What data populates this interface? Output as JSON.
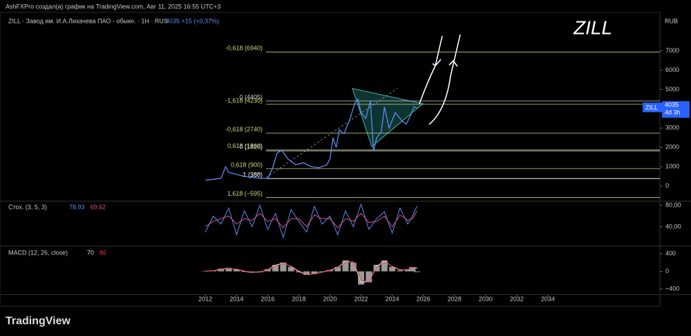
{
  "header": {
    "author_line": "AshFXPro создал(а) график на TradingView.com, Авг 11, 2025 16:55 UTC+3",
    "symbol_line": "ZILL · Завод им. И.А.Лихачева ПАО - обыкн. · 1H · RUS",
    "price_change": "4035 +15 (+0,37%)",
    "big_ticker": "ZILL",
    "currency": "RUB",
    "logo": "TradingView"
  },
  "price_label": {
    "symbol": "ZILL",
    "value": 4035,
    "countdown": "4d 3h"
  },
  "chart_data": [
    {
      "type": "line",
      "color": "#5b8ff0",
      "x": [
        2012.0,
        2012.5,
        2013.0,
        2013.3,
        2013.5,
        2014.0,
        2014.5,
        2015.0,
        2015.5,
        2016.0,
        2016.3,
        2016.6,
        2016.9,
        2017.3,
        2017.8,
        2018.3,
        2018.8,
        2019.3,
        2019.8,
        2020.0,
        2020.2,
        2020.4,
        2020.6,
        2020.9,
        2021.3,
        2021.6,
        2021.8,
        2022.0,
        2022.3,
        2022.6,
        2022.8,
        2023.0,
        2023.3,
        2023.5,
        2023.8,
        2024.2,
        2024.6,
        2024.9,
        2025.2,
        2025.4,
        2025.6
      ],
      "values": [
        300,
        350,
        400,
        1000,
        700,
        600,
        500,
        450,
        400,
        380,
        900,
        1700,
        1850,
        1400,
        1100,
        1200,
        1000,
        950,
        1100,
        1400,
        2500,
        2000,
        2900,
        2700,
        3500,
        4300,
        4500,
        3800,
        3500,
        4400,
        1800,
        2500,
        2800,
        4100,
        3000,
        3800,
        3400,
        3200,
        3700,
        4100,
        4035
      ],
      "xlim": [
        1998.8,
        2041.2
      ],
      "xticks": [
        2012,
        2014,
        2016,
        2018,
        2020,
        2022,
        2024,
        2026,
        2028,
        2030,
        2032,
        2034
      ],
      "ylim": [
        -750,
        8200
      ],
      "yticks": [
        0,
        1000,
        2000,
        3000,
        4000,
        5000,
        6000,
        7000
      ],
      "levels": [
        {
          "label": "-0,618 (6940)",
          "value": 6940,
          "color": "#c9dc7c"
        },
        {
          "label": "0 (4405)",
          "value": 4405,
          "color": "#d0d0d0"
        },
        {
          "label": "-1,618 (4230)",
          "value": 4230,
          "color": "#c9dc7c"
        },
        {
          "label": "-0,618 (2740)",
          "value": 2740,
          "color": "#c9dc7c"
        },
        {
          "label": "0,618 (1869)",
          "value": 1869,
          "color": "#c9dc7c"
        },
        {
          "label": "0 (1820)",
          "value": 1820,
          "color": "#d0d0d0"
        },
        {
          "label": "0,618 (900)",
          "value": 900,
          "color": "#c9dc7c"
        },
        {
          "label": "1 (388)",
          "value": 388,
          "color": "#d0d0d0"
        },
        {
          "label": "1 (380)",
          "value": 380,
          "color": "#d0d0d0"
        },
        {
          "label": "1,618 (−595)",
          "value": -595,
          "color": "#c9dc7c"
        }
      ]
    },
    {
      "type": "line",
      "title": "Стох. (3, 5, 3)",
      "x": [
        2012.0,
        2012.5,
        2013.0,
        2013.5,
        2014.0,
        2014.5,
        2015.0,
        2015.5,
        2016.0,
        2016.5,
        2017.0,
        2017.5,
        2018.0,
        2018.5,
        2019.0,
        2019.5,
        2020.0,
        2020.5,
        2021.0,
        2021.5,
        2022.0,
        2022.5,
        2023.0,
        2023.5,
        2024.0,
        2024.5,
        2025.0,
        2025.3,
        2025.6
      ],
      "series": [
        {
          "color": "#5b8ff0",
          "last_label": "78,93",
          "values": [
            30,
            60,
            45,
            75,
            25,
            70,
            40,
            80,
            35,
            65,
            20,
            72,
            50,
            30,
            78,
            45,
            60,
            25,
            70,
            40,
            82,
            35,
            55,
            68,
            28,
            75,
            45,
            60,
            78.93
          ]
        },
        {
          "color": "#e0508a",
          "last_label": "69,62",
          "values": [
            40,
            50,
            55,
            60,
            45,
            55,
            52,
            65,
            50,
            55,
            38,
            55,
            55,
            40,
            62,
            55,
            55,
            38,
            55,
            50,
            65,
            48,
            50,
            60,
            40,
            62,
            52,
            55,
            69.62
          ]
        }
      ],
      "xlim": [
        1998.8,
        2041.2
      ],
      "ylim": [
        5,
        86.5
      ],
      "yticks": [
        {
          "value": 40,
          "label": "40,00"
        },
        {
          "value": 80,
          "label": "80,00"
        }
      ]
    },
    {
      "type": "macd",
      "title": "MACD (12, 26, close)",
      "x": [
        2012.0,
        2012.5,
        2013.0,
        2013.5,
        2014.0,
        2014.5,
        2015.0,
        2015.5,
        2016.0,
        2016.5,
        2017.0,
        2017.5,
        2018.0,
        2018.5,
        2019.0,
        2019.5,
        2020.0,
        2020.5,
        2021.0,
        2021.5,
        2022.0,
        2022.5,
        2023.0,
        2023.5,
        2024.0,
        2024.5,
        2025.0,
        2025.3,
        2025.6
      ],
      "histogram": {
        "color": "#9a9a9a",
        "values": [
          10,
          20,
          60,
          80,
          40,
          -10,
          -30,
          -20,
          50,
          150,
          200,
          100,
          -20,
          -80,
          -60,
          -20,
          30,
          100,
          250,
          200,
          -300,
          -250,
          150,
          250,
          100,
          20,
          50,
          100,
          -16
        ]
      },
      "series": [
        {
          "color": "#d8d8d8",
          "values": [
            5,
            15,
            50,
            70,
            45,
            0,
            -25,
            -15,
            40,
            140,
            190,
            110,
            -10,
            -70,
            -55,
            -15,
            25,
            90,
            230,
            210,
            -250,
            -230,
            120,
            230,
            110,
            30,
            45,
            95,
            70
          ]
        },
        {
          "color": "#e03a3a",
          "values": [
            0,
            10,
            40,
            65,
            50,
            10,
            -20,
            -20,
            30,
            120,
            180,
            120,
            10,
            -60,
            -60,
            -20,
            15,
            80,
            210,
            220,
            -200,
            -240,
            100,
            210,
            120,
            40,
            40,
            90,
            86
          ]
        }
      ],
      "xlim": [
        1998.8,
        2041.2
      ],
      "ylim": [
        -512,
        544
      ],
      "yticks": [
        {
          "value": -400,
          "label": "−400"
        },
        0,
        400
      ]
    }
  ]
}
